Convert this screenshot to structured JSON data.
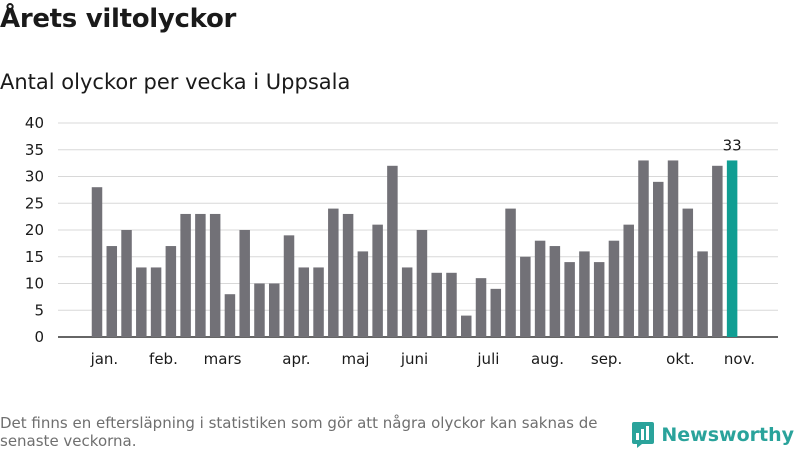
{
  "header": {
    "title": "Årets viltolyckor",
    "subtitle": "Antal olyckor per vecka i Uppsala"
  },
  "footer": {
    "note": "Det finns en eftersläpning i statistiken som gör att några olyckor kan saknas de senaste veckorna.",
    "brand": "Newsworthy"
  },
  "colors": {
    "bar": "#727177",
    "highlight": "#109e93",
    "grid": "#d8d8d8",
    "brand": "#2aa39b"
  },
  "chart_data": {
    "type": "bar",
    "title": "Antal olyckor per vecka i Uppsala",
    "xlabel": "",
    "ylabel": "",
    "ylim": [
      0,
      40
    ],
    "yticks": [
      0,
      5,
      10,
      15,
      20,
      25,
      30,
      35,
      40
    ],
    "grid": true,
    "weeks": [
      1,
      2,
      3,
      4,
      5,
      6,
      7,
      8,
      9,
      10,
      11,
      12,
      13,
      14,
      15,
      16,
      17,
      18,
      19,
      20,
      21,
      22,
      23,
      24,
      25,
      26,
      27,
      28,
      29,
      30,
      31,
      32,
      33,
      34,
      35,
      36,
      37,
      38,
      39,
      40,
      41,
      42,
      43,
      44
    ],
    "values": [
      28,
      17,
      20,
      13,
      13,
      17,
      23,
      23,
      23,
      8,
      20,
      10,
      10,
      19,
      13,
      13,
      24,
      23,
      16,
      21,
      32,
      13,
      20,
      12,
      12,
      4,
      11,
      9,
      24,
      15,
      18,
      17,
      14,
      16,
      14,
      18,
      21,
      33,
      29,
      33,
      24,
      16,
      32,
      33
    ],
    "highlight_index": 43,
    "highlight_label": "33",
    "month_labels": [
      {
        "label": "jan.",
        "week": 1.5
      },
      {
        "label": "feb.",
        "week": 5.5
      },
      {
        "label": "mars",
        "week": 9.5
      },
      {
        "label": "apr.",
        "week": 14.5
      },
      {
        "label": "maj",
        "week": 18.5
      },
      {
        "label": "juni",
        "week": 22.5
      },
      {
        "label": "juli",
        "week": 27.5
      },
      {
        "label": "aug.",
        "week": 31.5
      },
      {
        "label": "sep.",
        "week": 35.5
      },
      {
        "label": "okt.",
        "week": 40.5
      },
      {
        "label": "nov.",
        "week": 44.5
      }
    ]
  }
}
